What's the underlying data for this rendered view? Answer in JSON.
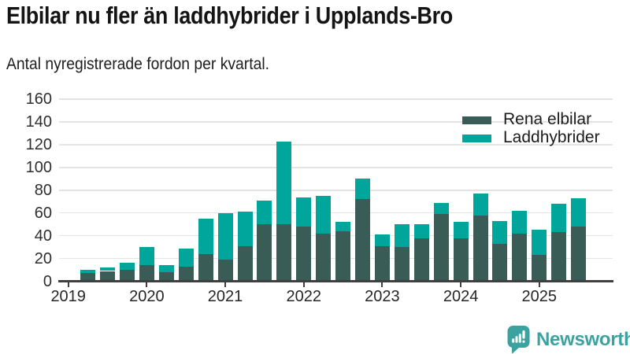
{
  "title": "Elbilar nu fler än laddhybrider i Upplands-Bro",
  "subtitle": "Antal nyregistrerade fordon per kvartal.",
  "legend": {
    "items": [
      {
        "label": "Rena elbilar",
        "color": "#3A5C57"
      },
      {
        "label": "Laddhybrider",
        "color": "#00A69B"
      }
    ]
  },
  "brand": {
    "name": "Newsworthy",
    "color": "#3BA39F"
  },
  "colors": {
    "grid": "#e4e4e4",
    "axis": "#3f3f3f",
    "bar_dark": "#3A5C57",
    "bar_teal": "#00A69B"
  },
  "chart_data": {
    "type": "bar",
    "stacked": true,
    "title": "Elbilar nu fler än laddhybrider i Upplands-Bro",
    "subtitle": "Antal nyregistrerade fordon per kvartal.",
    "ylabel": "Antal nyregistrerade fordon",
    "ylim": [
      0,
      160
    ],
    "yticks": [
      0,
      20,
      40,
      60,
      80,
      100,
      120,
      140,
      160
    ],
    "grid": true,
    "legend_position": "top-right",
    "x_quarters": [
      "2019 Q1",
      "2019 Q2",
      "2019 Q3",
      "2019 Q4",
      "2020 Q1",
      "2020 Q2",
      "2020 Q3",
      "2020 Q4",
      "2021 Q1",
      "2021 Q2",
      "2021 Q3",
      "2021 Q4",
      "2022 Q1",
      "2022 Q2",
      "2022 Q3",
      "2022 Q4",
      "2023 Q1",
      "2023 Q2",
      "2023 Q3",
      "2023 Q4",
      "2024 Q1",
      "2024 Q2",
      "2024 Q3",
      "2024 Q4",
      "2025 Q1",
      "2025 Q2",
      "2025 Q3"
    ],
    "series": [
      {
        "name": "Rena elbilar",
        "color": "#3A5C57",
        "values": [
          0,
          7,
          9,
          10,
          14,
          8,
          13,
          24,
          19,
          31,
          50,
          50,
          48,
          42,
          44,
          72,
          31,
          30,
          38,
          59,
          38,
          58,
          33,
          42,
          23,
          43,
          48
        ]
      },
      {
        "name": "Laddhybrider",
        "color": "#00A69B",
        "values": [
          0,
          3,
          3,
          6,
          16,
          6,
          16,
          31,
          41,
          30,
          21,
          73,
          26,
          33,
          8,
          18,
          10,
          20,
          12,
          10,
          14,
          19,
          20,
          20,
          22,
          25,
          25
        ]
      }
    ],
    "year_ticks": {
      "labels": [
        "2019",
        "2020",
        "2021",
        "2022",
        "2023",
        "2024",
        "2025"
      ],
      "quarter_index": [
        0,
        4,
        8,
        12,
        16,
        20,
        24
      ]
    }
  }
}
